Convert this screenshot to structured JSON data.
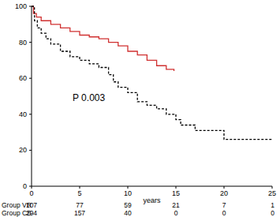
{
  "chart_data": {
    "type": "step",
    "x_label": "years",
    "xlim": [
      0,
      25
    ],
    "xticks": [
      0,
      5,
      10,
      15,
      20,
      25
    ],
    "ylim": [
      0,
      100
    ],
    "yticks": [
      0,
      20,
      40,
      60,
      80,
      100
    ],
    "grid": false,
    "annotations": [
      {
        "text": "P 0.003"
      }
    ],
    "series": [
      {
        "name": "Group VR",
        "color": "#d03030",
        "line_style": "solid",
        "x": [
          0,
          0.2,
          0.5,
          1,
          2,
          3,
          4,
          5,
          6,
          7,
          8,
          9,
          10,
          11,
          12,
          13,
          14,
          14.8
        ],
        "values": [
          100,
          96,
          94,
          92,
          90,
          88,
          86,
          84,
          83,
          82,
          80,
          78,
          75,
          73,
          70,
          67,
          65,
          64
        ]
      },
      {
        "name": "Group CS",
        "color": "#000000",
        "line_style": "dashed",
        "x": [
          0,
          0.3,
          0.6,
          1,
          1.5,
          2,
          3,
          4,
          5,
          6,
          7,
          8,
          8.5,
          9,
          10,
          11,
          12,
          13,
          14,
          15,
          15.5,
          17,
          20,
          25
        ],
        "values": [
          100,
          92,
          88,
          85,
          82,
          79,
          75,
          72,
          70,
          68,
          66,
          62,
          58,
          55,
          52,
          47,
          45,
          43,
          40,
          37,
          34,
          31,
          26,
          26
        ]
      }
    ],
    "at_risk": {
      "x": [
        0,
        5,
        10,
        15,
        20,
        25
      ],
      "rows": [
        {
          "name": "Group VR",
          "values": [
            107,
            77,
            59,
            21,
            7,
            1
          ]
        },
        {
          "name": "Group CS",
          "values": [
            294,
            157,
            40,
            0,
            0,
            0
          ]
        }
      ]
    }
  }
}
